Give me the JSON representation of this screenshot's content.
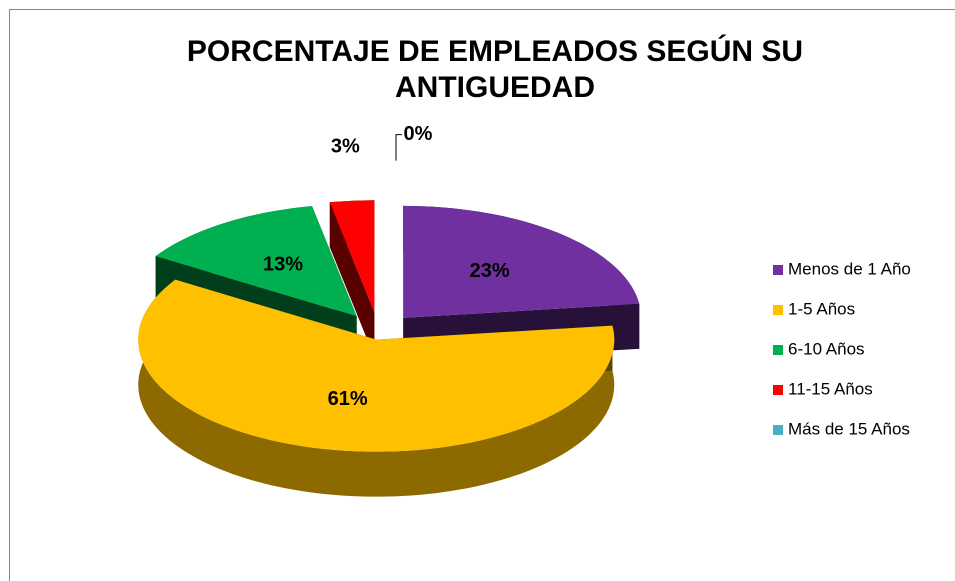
{
  "chart_data": {
    "type": "pie",
    "title": "PORCENTAJE DE EMPLEADOS SEGÚN SU ANTIGUEDAD",
    "categories": [
      "Menos de 1 Año",
      "1-5 Años",
      "6-10 Años",
      "11-15 Años",
      "Más de 15 Años"
    ],
    "values": [
      23,
      61,
      13,
      3,
      0
    ],
    "value_labels": [
      "23%",
      "61%",
      "13%",
      "3%",
      "0%"
    ],
    "colors": [
      "#7030a0",
      "#ffc000",
      "#00b050",
      "#ff0000",
      "#4bacc6"
    ],
    "legend": "right"
  }
}
